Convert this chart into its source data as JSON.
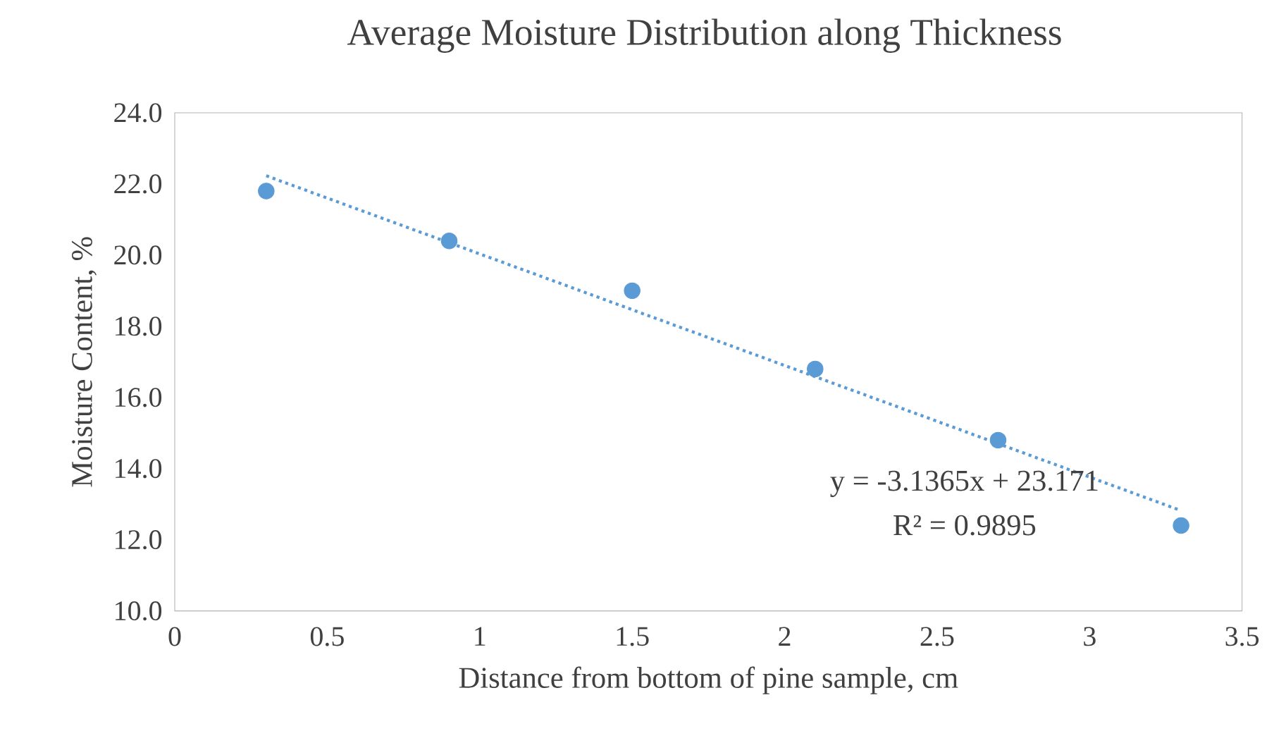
{
  "chart_data": {
    "type": "scatter",
    "title": "Average Moisture Distribution along Thickness",
    "xlabel": "Distance from bottom of pine sample, cm",
    "ylabel": "Moisture Content, %",
    "series": [
      {
        "color": "#5b9bd5",
        "marker": "circle",
        "x": [
          0.3,
          0.9,
          1.5,
          2.1,
          2.7,
          3.3
        ],
        "values": [
          21.8,
          20.4,
          19.0,
          16.8,
          14.8,
          12.4
        ]
      },
      {
        "type": "line",
        "color": "#5b9bd5",
        "line_style": "dotted",
        "marker": "none",
        "x": [
          0.3,
          3.3
        ],
        "values": [
          22.23,
          12.82
        ]
      }
    ],
    "annotations": [
      "y = -3.1365x + 23.171",
      "R² = 0.9895"
    ],
    "xlim": [
      0,
      3.5
    ],
    "xticks": [
      0,
      0.5,
      1,
      1.5,
      2,
      2.5,
      3,
      3.5
    ],
    "ylim": [
      10,
      24
    ],
    "yticks": [
      {
        "value": 10,
        "label": "10.0"
      },
      {
        "value": 12,
        "label": "12.0"
      },
      {
        "value": 14,
        "label": "14.0"
      },
      {
        "value": 16,
        "label": "16.0"
      },
      {
        "value": 18,
        "label": "18.0"
      },
      {
        "value": 20,
        "label": "20.0"
      },
      {
        "value": 22,
        "label": "22.0"
      },
      {
        "value": 24,
        "label": "24.0"
      }
    ]
  }
}
